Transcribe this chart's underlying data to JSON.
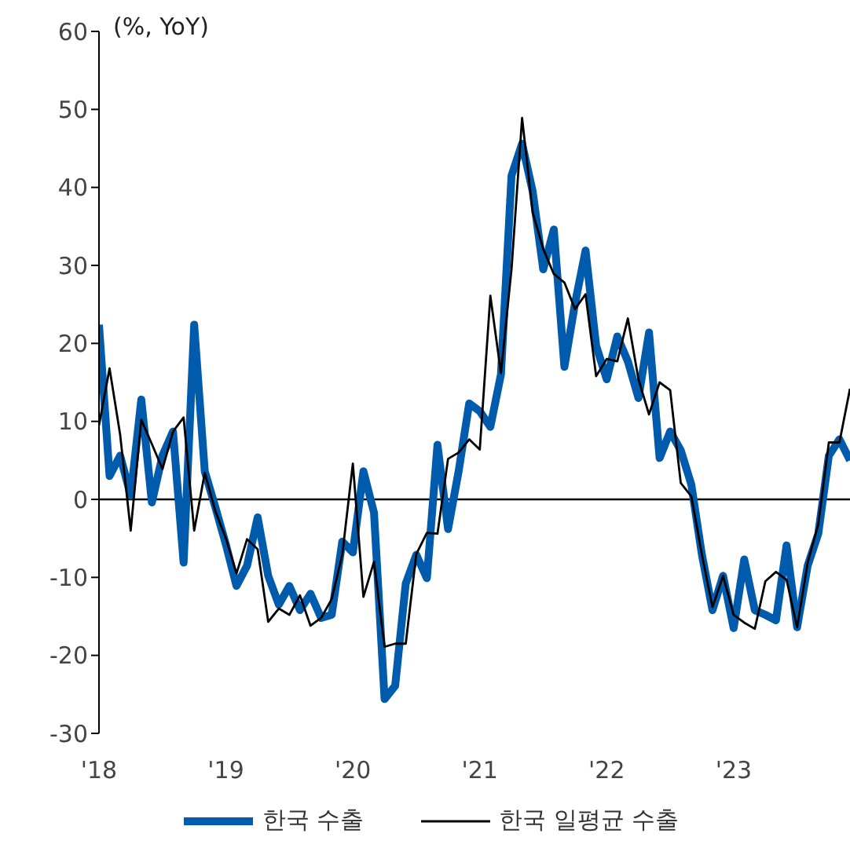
{
  "chart_data": {
    "type": "line",
    "ylabel": "(%, YoY)",
    "x": [
      "2018-01",
      "2018-02",
      "2018-03",
      "2018-04",
      "2018-05",
      "2018-06",
      "2018-07",
      "2018-08",
      "2018-09",
      "2018-10",
      "2018-11",
      "2018-12",
      "2019-01",
      "2019-02",
      "2019-03",
      "2019-04",
      "2019-05",
      "2019-06",
      "2019-07",
      "2019-08",
      "2019-09",
      "2019-10",
      "2019-11",
      "2019-12",
      "2020-01",
      "2020-02",
      "2020-03",
      "2020-04",
      "2020-05",
      "2020-06",
      "2020-07",
      "2020-08",
      "2020-09",
      "2020-10",
      "2020-11",
      "2020-12",
      "2021-01",
      "2021-02",
      "2021-03",
      "2021-04",
      "2021-05",
      "2021-06",
      "2021-07",
      "2021-08",
      "2021-09",
      "2021-10",
      "2021-11",
      "2021-12",
      "2022-01",
      "2022-02",
      "2022-03",
      "2022-04",
      "2022-05",
      "2022-06",
      "2022-07",
      "2022-08",
      "2022-09",
      "2022-10",
      "2022-11",
      "2022-12",
      "2023-01",
      "2023-02",
      "2023-03",
      "2023-04",
      "2023-05",
      "2023-06",
      "2023-07",
      "2023-08",
      "2023-09",
      "2023-10",
      "2023-11",
      "2023-12"
    ],
    "series": [
      {
        "name": "한국 수출",
        "color": "#005bac",
        "values": [
          22.4,
          3.0,
          5.6,
          0.5,
          12.8,
          -0.4,
          5.6,
          8.7,
          -8.1,
          22.4,
          3.6,
          -1.0,
          -5.8,
          -11.1,
          -8.5,
          -2.3,
          -9.8,
          -13.5,
          -11.1,
          -14.2,
          -12.1,
          -15.2,
          -14.8,
          -5.4,
          -6.8,
          3.6,
          -1.7,
          -25.6,
          -23.9,
          -10.8,
          -7.1,
          -10.1,
          7.0,
          -3.8,
          3.6,
          12.3,
          11.3,
          9.3,
          16.0,
          41.5,
          45.6,
          39.5,
          29.5,
          34.6,
          17.0,
          25.1,
          31.9,
          19.7,
          15.4,
          20.9,
          17.7,
          13.0,
          21.4,
          5.3,
          8.7,
          6.3,
          1.9,
          -7.1,
          -14.2,
          -9.8,
          -16.5,
          -7.7,
          -14.2,
          -14.8,
          -15.5,
          -5.9,
          -16.4,
          -8.5,
          -4.4,
          5.6,
          7.7,
          5.0
        ]
      },
      {
        "name": "한국 일평균 수출",
        "color": "#000000",
        "values": [
          9.5,
          16.8,
          8.3,
          -4.0,
          10.2,
          7.1,
          3.9,
          8.7,
          10.5,
          -4.0,
          3.4,
          -1.5,
          -5.0,
          -9.5,
          -5.1,
          -6.4,
          -15.7,
          -14.0,
          -14.8,
          -12.3,
          -16.2,
          -15.2,
          -12.8,
          -7.1,
          4.6,
          -12.5,
          -8.0,
          -18.9,
          -18.5,
          -18.5,
          -7.0,
          -4.3,
          -4.4,
          5.2,
          6.0,
          7.7,
          6.4,
          26.1,
          16.2,
          29.5,
          48.9,
          36.8,
          32.1,
          28.9,
          27.8,
          24.4,
          26.3,
          15.8,
          18.0,
          17.7,
          23.2,
          15.4,
          10.9,
          15.0,
          14.0,
          2.1,
          0.4,
          -7.1,
          -13.8,
          -9.8,
          -14.8,
          -15.8,
          -16.6,
          -10.5,
          -9.3,
          -10.3,
          -16.4,
          -8.1,
          -3.2,
          7.3,
          7.3,
          14.2
        ]
      }
    ],
    "xlim": [
      "2018-01",
      "2023-12"
    ],
    "xticks": [
      {
        "value": "2018-01",
        "label": "'18"
      },
      {
        "value": "2019-01",
        "label": "'19"
      },
      {
        "value": "2020-01",
        "label": "'20"
      },
      {
        "value": "2021-01",
        "label": "'21"
      },
      {
        "value": "2022-01",
        "label": "'22"
      },
      {
        "value": "2023-01",
        "label": "'23"
      }
    ],
    "ylim": [
      -30,
      60
    ],
    "yticks": [
      -30,
      -20,
      -10,
      0,
      10,
      20,
      30,
      40,
      50,
      60
    ],
    "legend": "bottom",
    "marker": "none",
    "line_style": "solid"
  }
}
